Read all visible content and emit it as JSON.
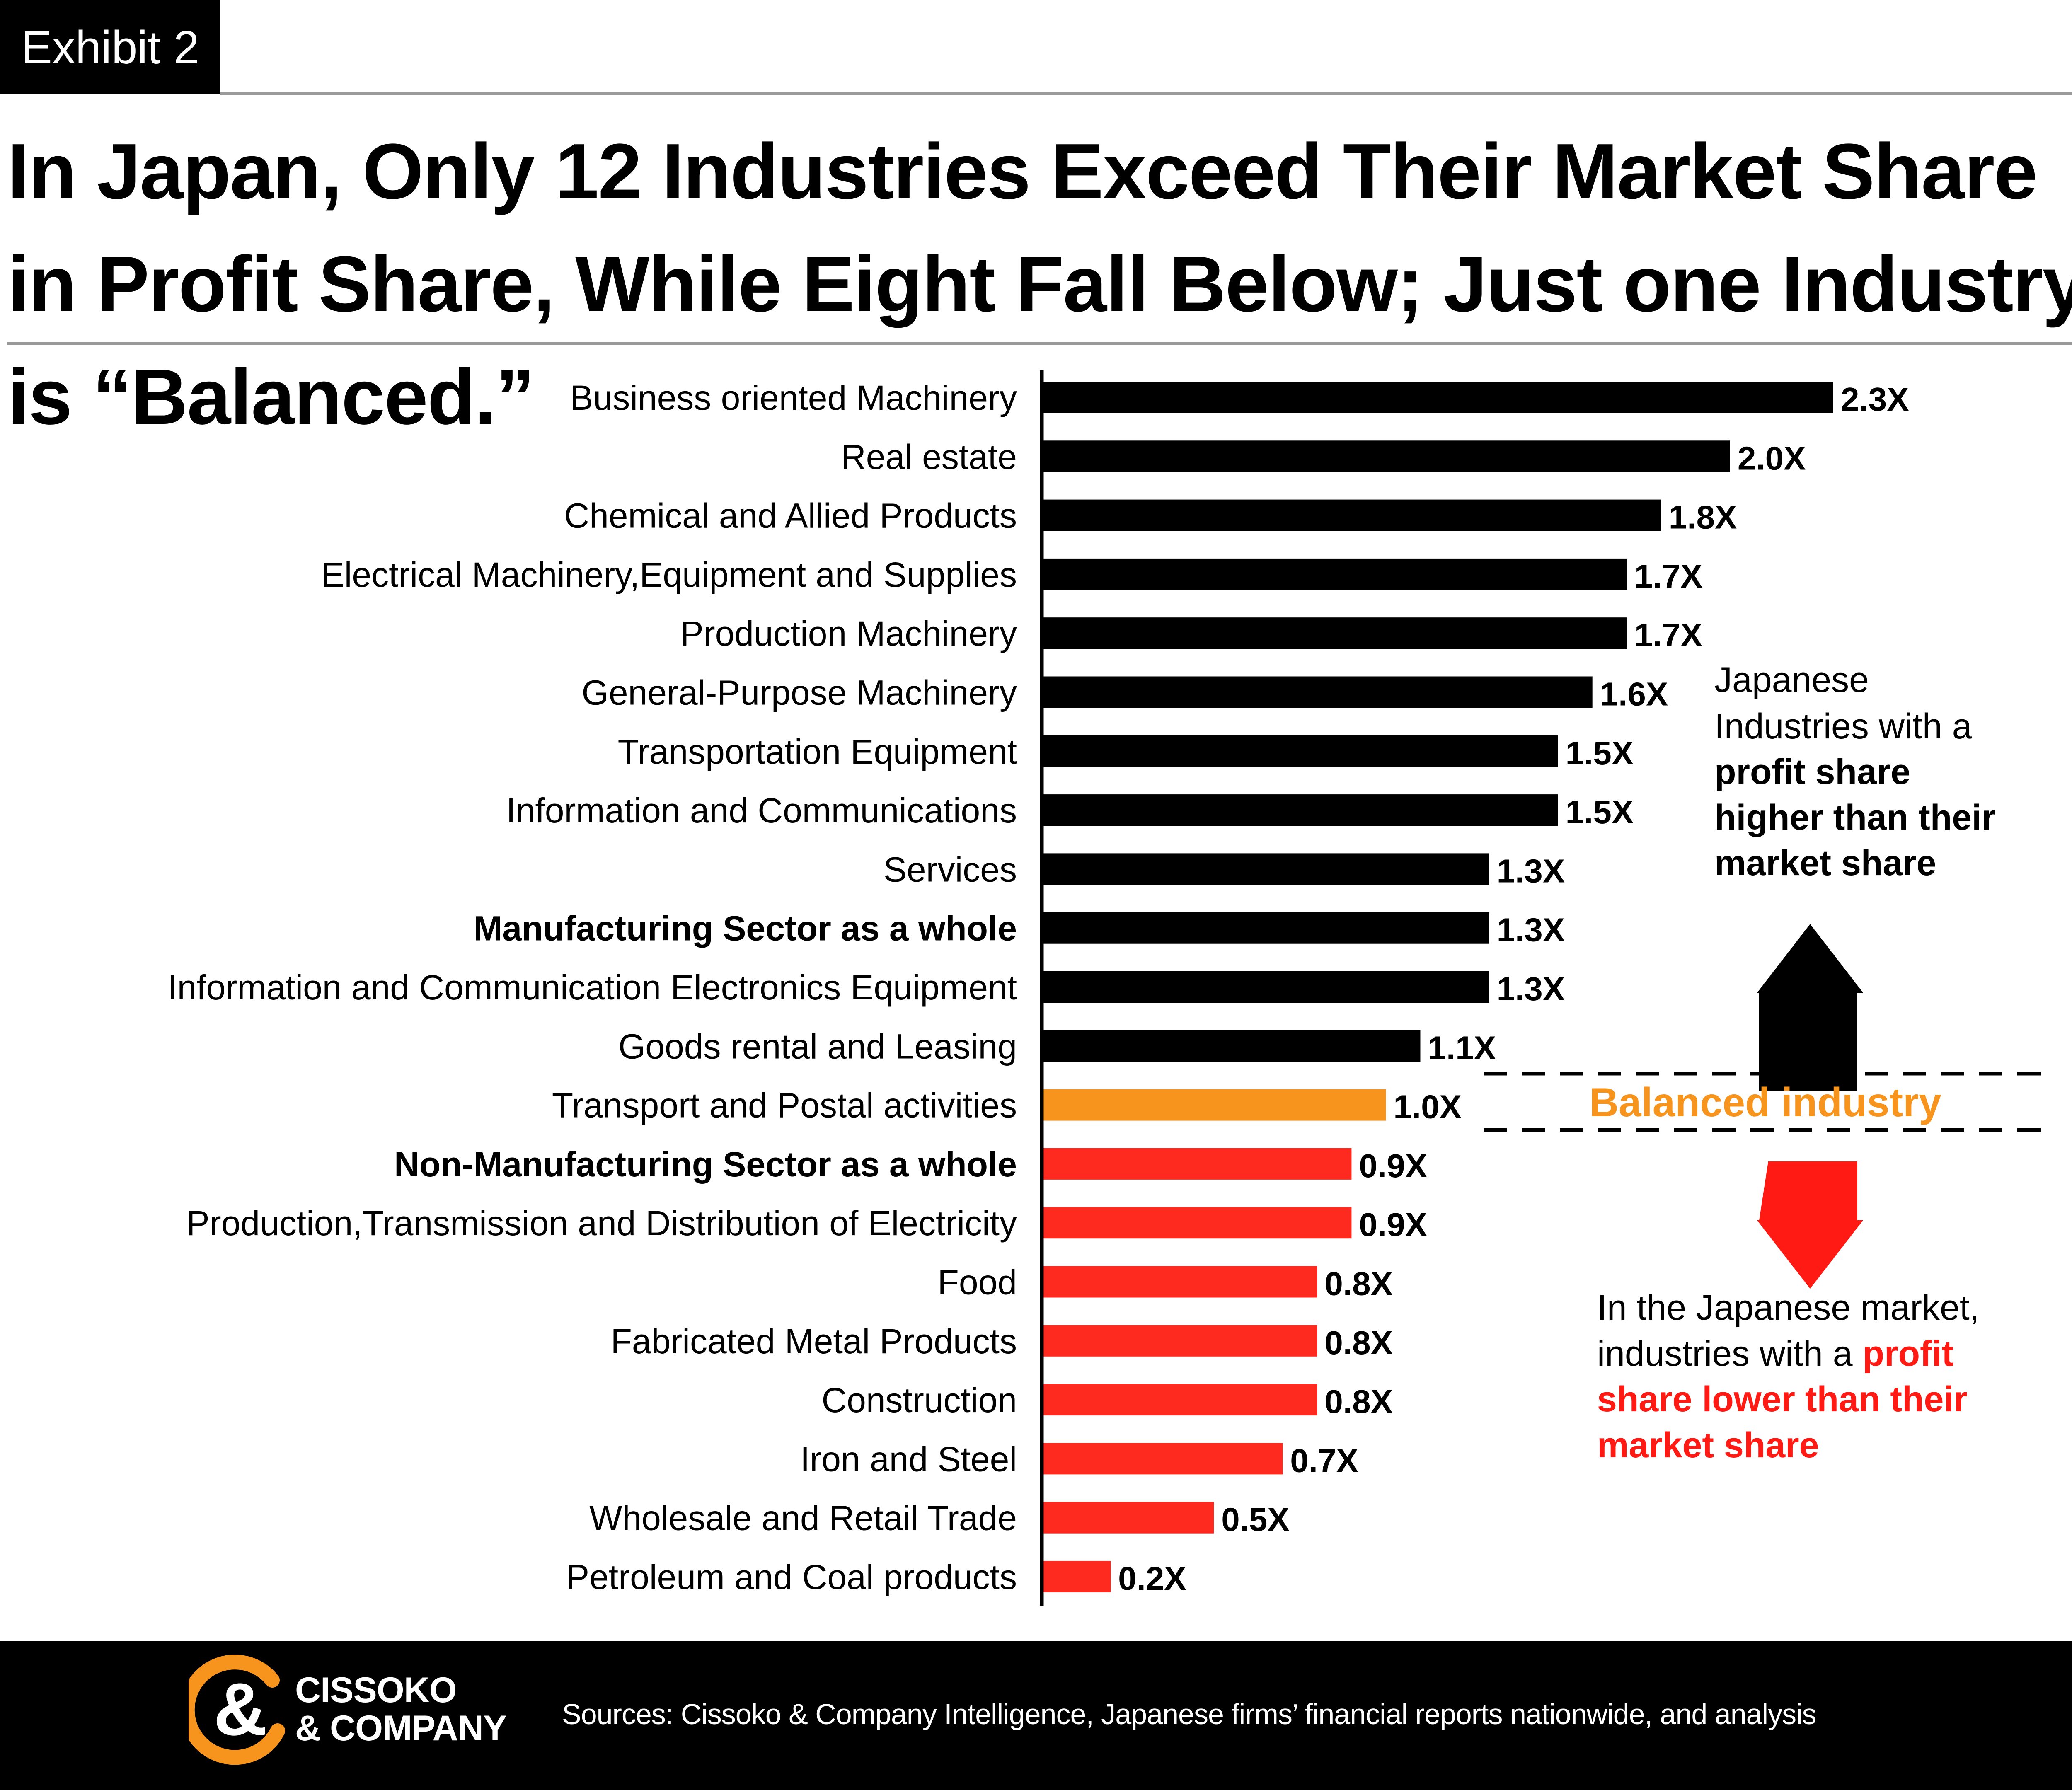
{
  "exhibit_label": "Exhibit 2",
  "headline": "In Japan, Only 12 Industries Exceed Their Market Share in Profit Share, While Eight Fall Below; Just one Industry is “Balanced.”",
  "annotations": {
    "above": {
      "line1": "Japanese",
      "line2": "Industries with a",
      "bold_line1": "profit share",
      "bold_line2": "higher than their",
      "bold_line3": "market share"
    },
    "balanced": "Balanced industry",
    "below": {
      "line1": "In the Japanese market,",
      "line2_plain": "industries with a ",
      "line2_red": "profit",
      "red_line3": "share lower than their",
      "red_line4": "market share"
    }
  },
  "chart_data": {
    "type": "bar",
    "orientation": "horizontal",
    "categories": [
      "Business oriented Machinery",
      "Real estate",
      "Chemical and Allied Products",
      "Electrical Machinery,Equipment and Supplies",
      "Production Machinery",
      "General-Purpose Machinery",
      "Transportation Equipment",
      "Information and Communications",
      "Services",
      "Manufacturing Sector as a whole",
      "Information and Communication Electronics Equipment",
      "Goods rental and Leasing",
      "Transport and Postal activities",
      "Non-Manufacturing Sector as a whole",
      "Production,Transmission and Distribution of Electricity",
      "Food",
      "Fabricated Metal Products",
      "Construction",
      "Iron and Steel",
      "Wholesale and Retail Trade",
      "Petroleum and Coal products"
    ],
    "values": [
      2.3,
      2.0,
      1.8,
      1.7,
      1.7,
      1.6,
      1.5,
      1.5,
      1.3,
      1.3,
      1.3,
      1.1,
      1.0,
      0.9,
      0.9,
      0.8,
      0.8,
      0.8,
      0.7,
      0.5,
      0.2
    ],
    "value_labels": [
      "2.3X",
      "2.0X",
      "1.8X",
      "1.7X",
      "1.7X",
      "1.6X",
      "1.5X",
      "1.5X",
      "1.3X",
      "1.3X",
      "1.3X",
      "1.1X",
      "1.0X",
      "0.9X",
      "0.9X",
      "0.8X",
      "0.8X",
      "0.8X",
      "0.7X",
      "0.5X",
      "0.2X"
    ],
    "bold_categories": [
      "Manufacturing Sector as a whole",
      "Non-Manufacturing Sector as a whole"
    ],
    "colors": {
      "above": "#000000",
      "balanced": "#f7941d",
      "below": "#ff2a1f",
      "balanced_text": "#f7941d",
      "below_text": "#ff1a14"
    },
    "xlim": [
      0,
      2.3
    ],
    "grid": false,
    "legend": "none"
  },
  "footer": {
    "logo_line1": "CISSOKO",
    "logo_line2": "& COMPANY",
    "sources": "Sources: Cissoko & Company Intelligence, Japanese firms’ financial reports nationwide, and analysis",
    "logo_colors": {
      "ring": "#f7941d",
      "ampersand": "#ffffff"
    }
  }
}
